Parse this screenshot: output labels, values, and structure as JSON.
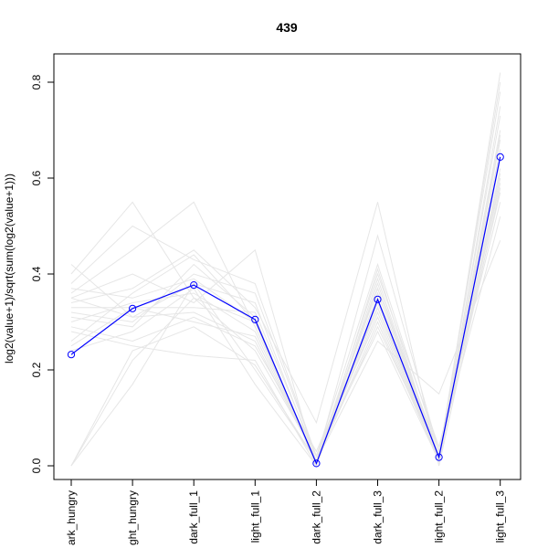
{
  "chart_data": {
    "type": "line",
    "title": "439",
    "xlabel": "",
    "ylabel": "log2(value+1)/sqrt(sum(log2(value+1)))",
    "categories": [
      "dark_hungry",
      "light_hungry",
      "dark_full_1",
      "light_full_1",
      "dark_full_2",
      "dark_full_3",
      "light_full_2",
      "light_full_3"
    ],
    "category_labels_shown": [
      "ark_hungry",
      "ght_hungry",
      "dark_full_1",
      "light_full_1",
      "dark_full_2",
      "dark_full_3",
      "light_full_2",
      "light_full_3"
    ],
    "ylim": [
      0,
      0.8
    ],
    "y_ticks": [
      0.0,
      0.2,
      0.4,
      0.6,
      0.8
    ],
    "y_tick_labels": [
      "0.0",
      "0.2",
      "0.4",
      "0.6",
      "0.8"
    ],
    "grid": false,
    "highlight_series": {
      "color": "#0000ff",
      "marker": "open-circle",
      "values": [
        0.232,
        0.328,
        0.377,
        0.305,
        0.005,
        0.347,
        0.018,
        0.644
      ]
    },
    "background_series_color": "#e6e6e6",
    "background_series": [
      [
        0.42,
        0.31,
        0.38,
        0.34,
        0.01,
        0.33,
        0.02,
        0.7
      ],
      [
        0.4,
        0.55,
        0.35,
        0.3,
        0.0,
        0.41,
        0.01,
        0.75
      ],
      [
        0.38,
        0.5,
        0.43,
        0.38,
        0.02,
        0.37,
        0.03,
        0.66
      ],
      [
        0.36,
        0.45,
        0.55,
        0.29,
        0.01,
        0.3,
        0.01,
        0.62
      ],
      [
        0.35,
        0.4,
        0.34,
        0.45,
        0.0,
        0.39,
        0.02,
        0.8
      ],
      [
        0.34,
        0.37,
        0.45,
        0.33,
        0.09,
        0.55,
        0.0,
        0.58
      ],
      [
        0.33,
        0.33,
        0.3,
        0.27,
        0.01,
        0.48,
        0.03,
        0.52
      ],
      [
        0.32,
        0.3,
        0.4,
        0.36,
        0.02,
        0.28,
        0.01,
        0.6
      ],
      [
        0.31,
        0.29,
        0.42,
        0.31,
        0.0,
        0.35,
        0.02,
        0.68
      ],
      [
        0.3,
        0.34,
        0.36,
        0.28,
        0.01,
        0.26,
        0.15,
        0.47
      ],
      [
        0.29,
        0.26,
        0.31,
        0.25,
        0.03,
        0.33,
        0.01,
        0.64
      ],
      [
        0.28,
        0.25,
        0.23,
        0.22,
        0.0,
        0.38,
        0.02,
        0.73
      ],
      [
        0.26,
        0.36,
        0.44,
        0.3,
        0.01,
        0.4,
        0.04,
        0.55
      ],
      [
        0.25,
        0.33,
        0.33,
        0.32,
        0.02,
        0.31,
        0.01,
        0.82
      ],
      [
        0.24,
        0.28,
        0.37,
        0.17,
        0.0,
        0.36,
        0.02,
        0.61
      ],
      [
        0.0,
        0.17,
        0.38,
        0.2,
        0.01,
        0.32,
        0.01,
        0.66
      ],
      [
        0.0,
        0.22,
        0.35,
        0.24,
        0.02,
        0.42,
        0.03,
        0.57
      ],
      [
        0.0,
        0.24,
        0.29,
        0.21,
        0.01,
        0.29,
        0.02,
        0.78
      ],
      [
        0.37,
        0.35,
        0.39,
        0.3,
        0.0,
        0.34,
        0.01,
        0.69
      ],
      [
        0.35,
        0.31,
        0.32,
        0.26,
        0.01,
        0.37,
        0.02,
        0.59
      ]
    ]
  }
}
